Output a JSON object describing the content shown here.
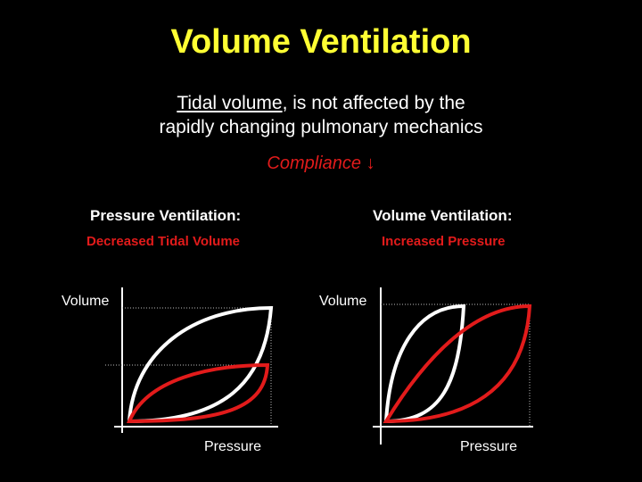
{
  "colors": {
    "title": "#ffff33",
    "accent": "#e21b1b",
    "text": "#ffffff",
    "background": "#000000"
  },
  "slide": {
    "title": "Volume Ventilation",
    "subtitle_underlined": "Tidal volume",
    "subtitle_rest": ", is not affected by the",
    "subtitle_line2": "rapidly changing pulmonary mechanics",
    "compliance_label": "Compliance",
    "compliance_arrow": "↓"
  },
  "panels": [
    {
      "mode": "Pressure Ventilation:",
      "effect": "Decreased Tidal Volume",
      "y_label": "Volume",
      "x_label": "Pressure"
    },
    {
      "mode": "Volume Ventilation:",
      "effect": "Increased Pressure",
      "y_label": "Volume",
      "x_label": "Pressure"
    }
  ]
}
